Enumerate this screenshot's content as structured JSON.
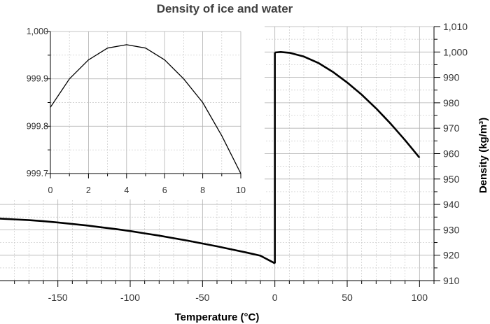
{
  "chart_data": [
    {
      "type": "line",
      "role": "main",
      "title": "Density of ice and water",
      "xlabel": "Temperature (°C)",
      "ylabel": "Density (kg/m³)",
      "xlim": [
        -190,
        110
      ],
      "ylim": [
        910,
        1010
      ],
      "xticks": [
        -150,
        -100,
        -50,
        0,
        50,
        100
      ],
      "xtick_labels": [
        "-150",
        "-100",
        "-50",
        "0",
        "50",
        "100"
      ],
      "yticks": [
        910,
        920,
        930,
        940,
        950,
        960,
        970,
        980,
        990,
        1000,
        1010
      ],
      "ytick_labels": [
        "910",
        "920",
        "930",
        "940",
        "950",
        "960",
        "970",
        "980",
        "990",
        "1,000",
        "1,010"
      ],
      "grid": true,
      "series": [
        {
          "x": [
            -190,
            -180,
            -170,
            -160,
            -150,
            -140,
            -130,
            -120,
            -110,
            -100,
            -90,
            -80,
            -70,
            -60,
            -50,
            -40,
            -30,
            -20,
            -10,
            0
          ],
          "y": [
            934.4,
            934.1,
            933.8,
            933.4,
            932.9,
            932.3,
            931.7,
            931.0,
            930.3,
            929.5,
            928.6,
            927.7,
            926.7,
            925.7,
            924.6,
            923.5,
            922.3,
            921.1,
            919.8,
            916.8
          ]
        },
        {
          "x": [
            0,
            4,
            10,
            20,
            30,
            40,
            50,
            60,
            70,
            80,
            90,
            100
          ],
          "y": [
            999.8,
            1000.0,
            999.7,
            998.2,
            995.7,
            992.2,
            988.0,
            983.2,
            977.8,
            971.8,
            965.3,
            958.4
          ]
        }
      ]
    },
    {
      "type": "line",
      "role": "inset",
      "xlim": [
        0,
        10
      ],
      "ylim": [
        999.7,
        1000.0
      ],
      "xticks": [
        0,
        2,
        4,
        6,
        8,
        10
      ],
      "xtick_labels": [
        "0",
        "2",
        "4",
        "6",
        "8",
        "10"
      ],
      "yticks": [
        999.7,
        999.8,
        999.9,
        1000.0
      ],
      "ytick_labels": [
        "999.7",
        "999.8",
        "999.9",
        "1,000"
      ],
      "grid": true,
      "series": [
        {
          "x": [
            0,
            1,
            2,
            3,
            4,
            5,
            6,
            7,
            8,
            9,
            10
          ],
          "y": [
            999.84,
            999.9,
            999.94,
            999.965,
            999.972,
            999.965,
            999.94,
            999.9,
            999.85,
            999.78,
            999.7
          ]
        }
      ]
    }
  ]
}
